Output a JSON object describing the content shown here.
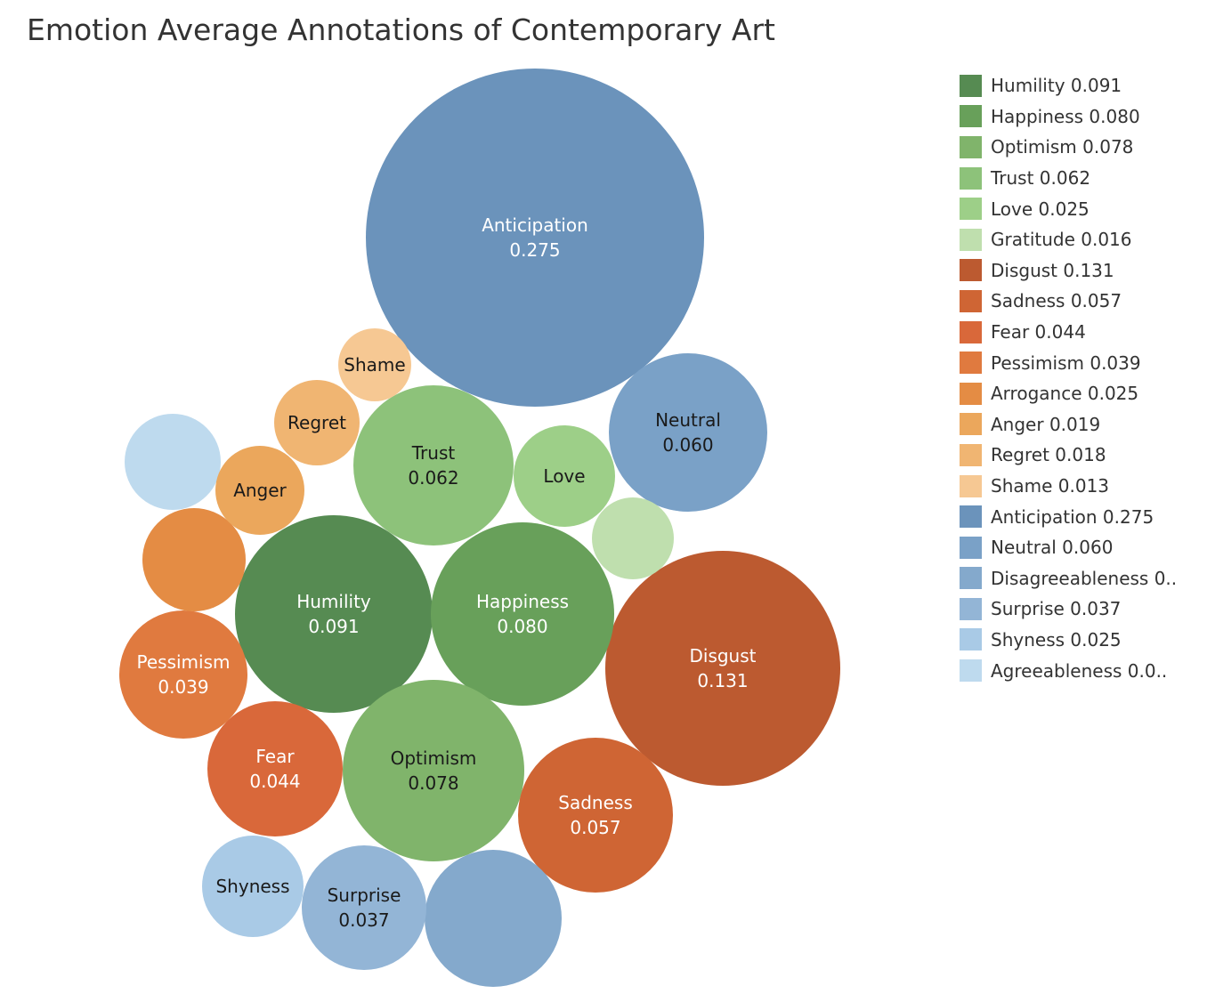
{
  "chart_data": {
    "type": "bubble",
    "title": "Emotion Average Annotations of Contemporary Art",
    "series": [
      {
        "name": "Anticipation",
        "value": 0.275,
        "color": "#6b93bb",
        "label_color": "#ffffff",
        "label": "Anticipation",
        "value_label": "0.275"
      },
      {
        "name": "Disgust",
        "value": 0.131,
        "color": "#bc5a30",
        "label_color": "#ffffff",
        "label": "Disgust",
        "value_label": "0.131"
      },
      {
        "name": "Humility",
        "value": 0.091,
        "color": "#568b52",
        "label_color": "#ffffff",
        "label": "Humility",
        "value_label": "0.091"
      },
      {
        "name": "Happiness",
        "value": 0.08,
        "color": "#68a05a",
        "label_color": "#ffffff",
        "label": "Happiness",
        "value_label": "0.080"
      },
      {
        "name": "Optimism",
        "value": 0.078,
        "color": "#80b46b",
        "label_color": "#1a1a1a",
        "label": "Optimism",
        "value_label": "0.078"
      },
      {
        "name": "Trust",
        "value": 0.062,
        "color": "#8dc27a",
        "label_color": "#1a1a1a",
        "label": "Trust",
        "value_label": "0.062"
      },
      {
        "name": "Neutral",
        "value": 0.06,
        "color": "#7aa1c7",
        "label_color": "#1a1a1a",
        "label": "Neutral",
        "value_label": "0.060"
      },
      {
        "name": "Sadness",
        "value": 0.057,
        "color": "#cf6534",
        "label_color": "#ffffff",
        "label": "Sadness",
        "value_label": "0.057"
      },
      {
        "name": "Disagreeableness",
        "value": null,
        "color": "#84a9cc",
        "label_color": "#1a1a1a",
        "label": "",
        "value_label": ""
      },
      {
        "name": "Fear",
        "value": 0.044,
        "color": "#d9683a",
        "label_color": "#ffffff",
        "label": "Fear",
        "value_label": "0.044"
      },
      {
        "name": "Pessimism",
        "value": 0.039,
        "color": "#e07a3f",
        "label_color": "#ffffff",
        "label": "Pessimism",
        "value_label": "0.039"
      },
      {
        "name": "Surprise",
        "value": 0.037,
        "color": "#93b5d6",
        "label_color": "#1a1a1a",
        "label": "Surprise",
        "value_label": "0.037"
      },
      {
        "name": "Arrogance",
        "value": 0.025,
        "color": "#e48c44",
        "label_color": "#1a1a1a",
        "label": "",
        "value_label": ""
      },
      {
        "name": "Love",
        "value": 0.025,
        "color": "#9dcf88",
        "label_color": "#1a1a1a",
        "label": "Love",
        "value_label": ""
      },
      {
        "name": "Shyness",
        "value": 0.025,
        "color": "#a9cae6",
        "label_color": "#1a1a1a",
        "label": "Shyness",
        "value_label": ""
      },
      {
        "name": "Agreeableness",
        "value": null,
        "color": "#bedaee",
        "label_color": "#1a1a1a",
        "label": "",
        "value_label": ""
      },
      {
        "name": "Anger",
        "value": 0.019,
        "color": "#eba75c",
        "label_color": "#1a1a1a",
        "label": "Anger",
        "value_label": ""
      },
      {
        "name": "Regret",
        "value": 0.018,
        "color": "#f0b572",
        "label_color": "#1a1a1a",
        "label": "Regret",
        "value_label": ""
      },
      {
        "name": "Gratitude",
        "value": 0.016,
        "color": "#bfdfae",
        "label_color": "#1a1a1a",
        "label": "",
        "value_label": ""
      },
      {
        "name": "Shame",
        "value": 0.013,
        "color": "#f6c893",
        "label_color": "#1a1a1a",
        "label": "Shame",
        "value_label": ""
      }
    ],
    "legend_position": "right",
    "legend": [
      {
        "label": "Humility 0.091",
        "color": "#568b52"
      },
      {
        "label": "Happiness 0.080",
        "color": "#68a05a"
      },
      {
        "label": "Optimism 0.078",
        "color": "#80b46b"
      },
      {
        "label": "Trust 0.062",
        "color": "#8dc27a"
      },
      {
        "label": "Love 0.025",
        "color": "#9dcf88"
      },
      {
        "label": "Gratitude 0.016",
        "color": "#bfdfae"
      },
      {
        "label": "Disgust 0.131",
        "color": "#bc5a30"
      },
      {
        "label": "Sadness 0.057",
        "color": "#cf6534"
      },
      {
        "label": "Fear 0.044",
        "color": "#d9683a"
      },
      {
        "label": "Pessimism 0.039",
        "color": "#e07a3f"
      },
      {
        "label": "Arrogance 0.025",
        "color": "#e48c44"
      },
      {
        "label": "Anger 0.019",
        "color": "#eba75c"
      },
      {
        "label": "Regret 0.018",
        "color": "#f0b572"
      },
      {
        "label": "Shame 0.013",
        "color": "#f6c893"
      },
      {
        "label": "Anticipation 0.275",
        "color": "#6b93bb"
      },
      {
        "label": "Neutral 0.060",
        "color": "#7aa1c7"
      },
      {
        "label": "Disagreeableness 0..",
        "color": "#84a9cc"
      },
      {
        "label": "Surprise 0.037",
        "color": "#93b5d6"
      },
      {
        "label": "Shyness 0.025",
        "color": "#a9cae6"
      },
      {
        "label": "Agreeableness 0.0..",
        "color": "#bedaee"
      }
    ]
  }
}
